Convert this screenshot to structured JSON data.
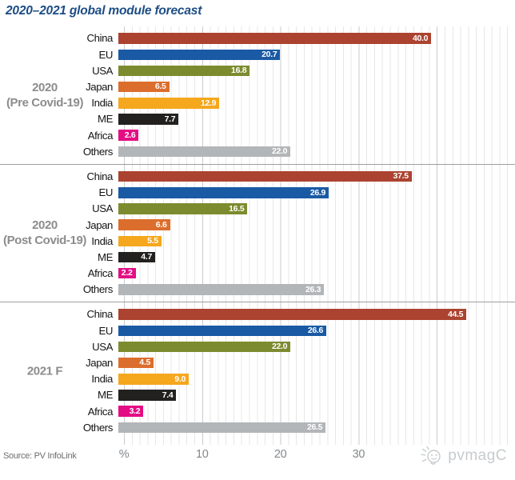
{
  "title": "2020–2021 global module forecast",
  "source": "Source: PV InfoLink",
  "watermark_text": "pvmagC",
  "colors": {
    "title": "#1d4d85",
    "group_label": "#8c8c8c",
    "separator": "#9e9e9e",
    "gridline_minor": "#e7e7e7",
    "gridline_major": "#c9cbcc",
    "value_label": "#ffffff"
  },
  "chart_data": {
    "type": "bar",
    "orientation": "horizontal",
    "unit": "%",
    "title": "2020–2021 global module forecast",
    "categories": [
      "China",
      "EU",
      "USA",
      "Japan",
      "India",
      "ME",
      "Africa",
      "Others"
    ],
    "category_colors": {
      "China": "#ab4330",
      "EU": "#1a5aa4",
      "USA": "#7d8b2f",
      "Japan": "#dc6e2d",
      "India": "#f5a71d",
      "ME": "#232020",
      "Africa": "#e40d84",
      "Others": "#b3b6b8"
    },
    "series": [
      {
        "name": "2020 (Pre Covid-19)",
        "label_lines": [
          "2020",
          "(Pre Covid-19)"
        ],
        "values": [
          40.0,
          20.7,
          16.8,
          6.5,
          12.9,
          7.7,
          2.6,
          22.0
        ]
      },
      {
        "name": "2020 (Post Covid-19)",
        "label_lines": [
          "2020",
          "(Post Covid-19)"
        ],
        "values": [
          37.5,
          26.9,
          16.5,
          6.6,
          5.5,
          4.7,
          2.2,
          26.3
        ]
      },
      {
        "name": "2021 F",
        "label_lines": [
          "2021 F"
        ],
        "values": [
          44.5,
          26.6,
          22.0,
          4.5,
          9.0,
          7.4,
          3.2,
          26.5
        ]
      }
    ],
    "xlim": [
      0,
      50
    ],
    "x_ticks": [
      0,
      10,
      20,
      30
    ],
    "x_tick_labels": [
      "%",
      "10",
      "20",
      "30"
    ],
    "grid": "vertical, minor every 1 unit, major every 10 units",
    "value_labels": "one decimal, white, inside bar right end"
  }
}
